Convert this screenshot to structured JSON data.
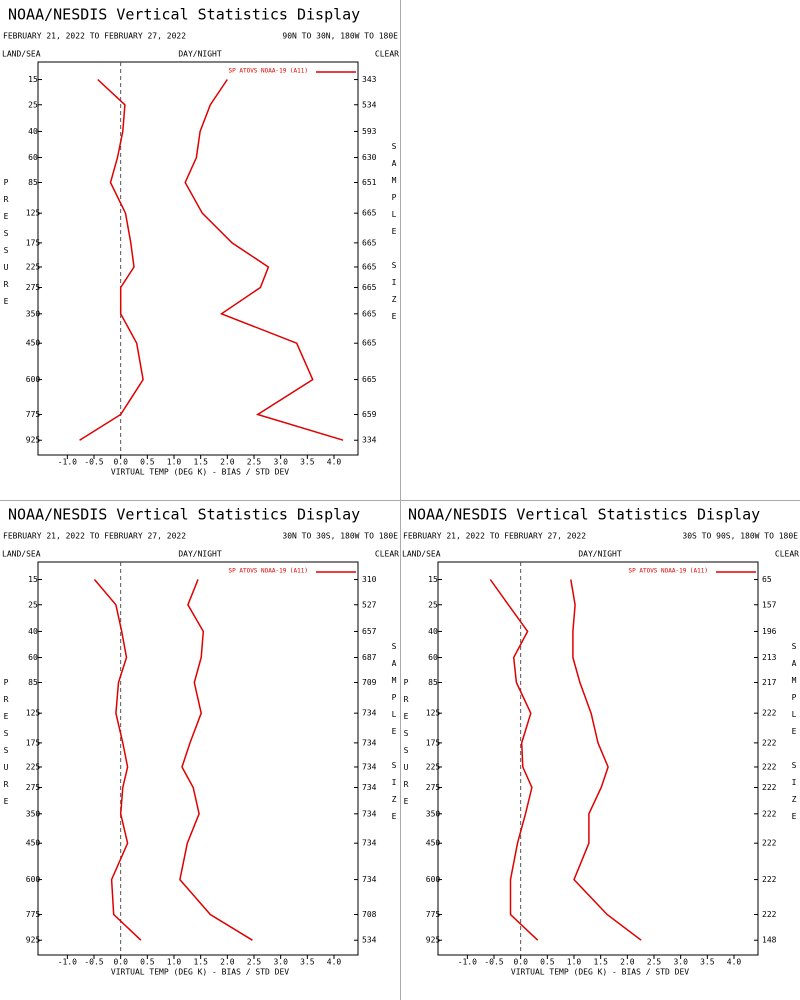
{
  "chart_data": [
    {
      "type": "line",
      "title": "NOAA/NESDIS Vertical Statistics Display",
      "subtitle": "FEBRUARY 21, 2022 TO FEBRUARY 27, 2022",
      "region": "90N TO 30N, 180W TO 180E",
      "land_sea": "LAND/SEA",
      "day_night": "DAY/NIGHT",
      "clear": "CLEAR",
      "x_label": "VIRTUAL TEMP (DEG K) - BIAS / STD DEV",
      "y_label": "PRESSURE",
      "y2_label": "SAMPLE SIZE",
      "y": [
        15,
        25,
        40,
        60,
        85,
        125,
        175,
        225,
        275,
        350,
        450,
        600,
        775,
        925
      ],
      "series": [
        {
          "name": "SP ATOVS NOAA-19 (A11)",
          "color": "#e00000",
          "values": [
            -0.43,
            0.08,
            0.04,
            -0.06,
            -0.19,
            0.09,
            0.19,
            0.25,
            0.0,
            0.0,
            0.3,
            0.42,
            0.0,
            -0.77
          ]
        },
        {
          "color": "#e00000",
          "values": [
            2.0,
            1.68,
            1.49,
            1.42,
            1.21,
            1.53,
            2.09,
            2.77,
            2.62,
            1.89,
            3.3,
            3.6,
            2.57,
            4.17
          ]
        }
      ],
      "sample_size": [
        "343",
        "534",
        "593",
        "630",
        "651",
        "665",
        "665",
        "665",
        "665",
        "665",
        "665",
        "665",
        "659",
        "334"
      ],
      "xlim": [
        -1.55,
        4.45
      ],
      "xticks": [
        {
          "value": -1.0,
          "label": "-1.0"
        },
        -0.5,
        {
          "value": 0.0,
          "label": "0.0"
        },
        0.5,
        {
          "value": 1.0,
          "label": "1.0"
        },
        1.5,
        {
          "value": 2.0,
          "label": "2.0"
        },
        2.5,
        {
          "value": 3.0,
          "label": "3.0"
        },
        3.5,
        {
          "value": 4.0,
          "label": "4.0"
        }
      ],
      "ylim": [
        10,
        1020
      ],
      "yticks": [
        15,
        25,
        40,
        60,
        85,
        125,
        175,
        225,
        275,
        350,
        450,
        600,
        775,
        925
      ]
    },
    {
      "type": "line",
      "title": "NOAA/NESDIS Vertical Statistics Display",
      "subtitle": "FEBRUARY 21, 2022 TO FEBRUARY 27, 2022",
      "region": "30N TO 30S, 180W TO 180E",
      "land_sea": "LAND/SEA",
      "day_night": "DAY/NIGHT",
      "clear": "CLEAR",
      "x_label": "VIRTUAL TEMP (DEG K) - BIAS / STD DEV",
      "y_label": "PRESSURE",
      "y2_label": "SAMPLE SIZE",
      "y": [
        15,
        25,
        40,
        60,
        85,
        125,
        175,
        225,
        275,
        350,
        450,
        600,
        775,
        925
      ],
      "series": [
        {
          "name": "SP ATOVS NOAA-19 (A11)",
          "color": "#e00000",
          "values": [
            -0.49,
            -0.09,
            0.02,
            0.11,
            -0.04,
            -0.09,
            0.04,
            0.13,
            0.04,
            0.0,
            0.13,
            -0.17,
            -0.13,
            0.38
          ]
        },
        {
          "color": "#e00000",
          "values": [
            1.45,
            1.26,
            1.55,
            1.51,
            1.38,
            1.51,
            1.3,
            1.15,
            1.36,
            1.47,
            1.25,
            1.11,
            1.68,
            2.47
          ]
        }
      ],
      "sample_size": [
        "310",
        "527",
        "657",
        "687",
        "709",
        "734",
        "734",
        "734",
        "734",
        "734",
        "734",
        "734",
        "708",
        "534"
      ],
      "xlim": [
        -1.55,
        4.45
      ],
      "xticks": [
        {
          "value": -1.0,
          "label": "-1.0"
        },
        -0.5,
        {
          "value": 0.0,
          "label": "0.0"
        },
        0.5,
        {
          "value": 1.0,
          "label": "1.0"
        },
        1.5,
        {
          "value": 2.0,
          "label": "2.0"
        },
        2.5,
        {
          "value": 3.0,
          "label": "3.0"
        },
        3.5,
        {
          "value": 4.0,
          "label": "4.0"
        }
      ],
      "ylim": [
        10,
        1020
      ],
      "yticks": [
        15,
        25,
        40,
        60,
        85,
        125,
        175,
        225,
        275,
        350,
        450,
        600,
        775,
        925
      ]
    },
    {
      "type": "line",
      "title": "NOAA/NESDIS Vertical Statistics Display",
      "subtitle": "FEBRUARY 21, 2022 TO FEBRUARY 27, 2022",
      "region": "30S TO 90S, 180W TO 180E",
      "land_sea": "LAND/SEA",
      "day_night": "DAY/NIGHT",
      "clear": "CLEAR",
      "x_label": "VIRTUAL TEMP (DEG K) - BIAS / STD DEV",
      "y_label": "PRESSURE",
      "y2_label": "SAMPLE SIZE",
      "y": [
        15,
        25,
        40,
        60,
        85,
        125,
        175,
        225,
        275,
        350,
        450,
        600,
        775,
        925
      ],
      "series": [
        {
          "name": "SP ATOVS NOAA-19 (A11)",
          "color": "#e00000",
          "values": [
            -0.57,
            -0.23,
            0.13,
            -0.13,
            -0.08,
            0.19,
            0.02,
            0.04,
            0.21,
            0.09,
            -0.06,
            -0.19,
            -0.19,
            0.32
          ]
        },
        {
          "color": "#e00000",
          "values": [
            0.94,
            1.02,
            0.98,
            0.98,
            1.11,
            1.32,
            1.45,
            1.64,
            1.51,
            1.28,
            1.28,
            1.0,
            1.62,
            2.26
          ]
        }
      ],
      "sample_size": [
        "65",
        "157",
        "196",
        "213",
        "217",
        "222",
        "222",
        "222",
        "222",
        "222",
        "222",
        "222",
        "222",
        "148"
      ],
      "xlim": [
        -1.55,
        4.45
      ],
      "xticks": [
        {
          "value": -1.0,
          "label": "-1.0"
        },
        -0.5,
        {
          "value": 0.0,
          "label": "0.0"
        },
        0.5,
        {
          "value": 1.0,
          "label": "1.0"
        },
        1.5,
        {
          "value": 2.0,
          "label": "2.0"
        },
        2.5,
        {
          "value": 3.0,
          "label": "3.0"
        },
        3.5,
        {
          "value": 4.0,
          "label": "4.0"
        }
      ],
      "ylim": [
        10,
        1020
      ],
      "yticks": [
        15,
        25,
        40,
        60,
        85,
        125,
        175,
        225,
        275,
        350,
        450,
        600,
        775,
        925
      ]
    }
  ]
}
